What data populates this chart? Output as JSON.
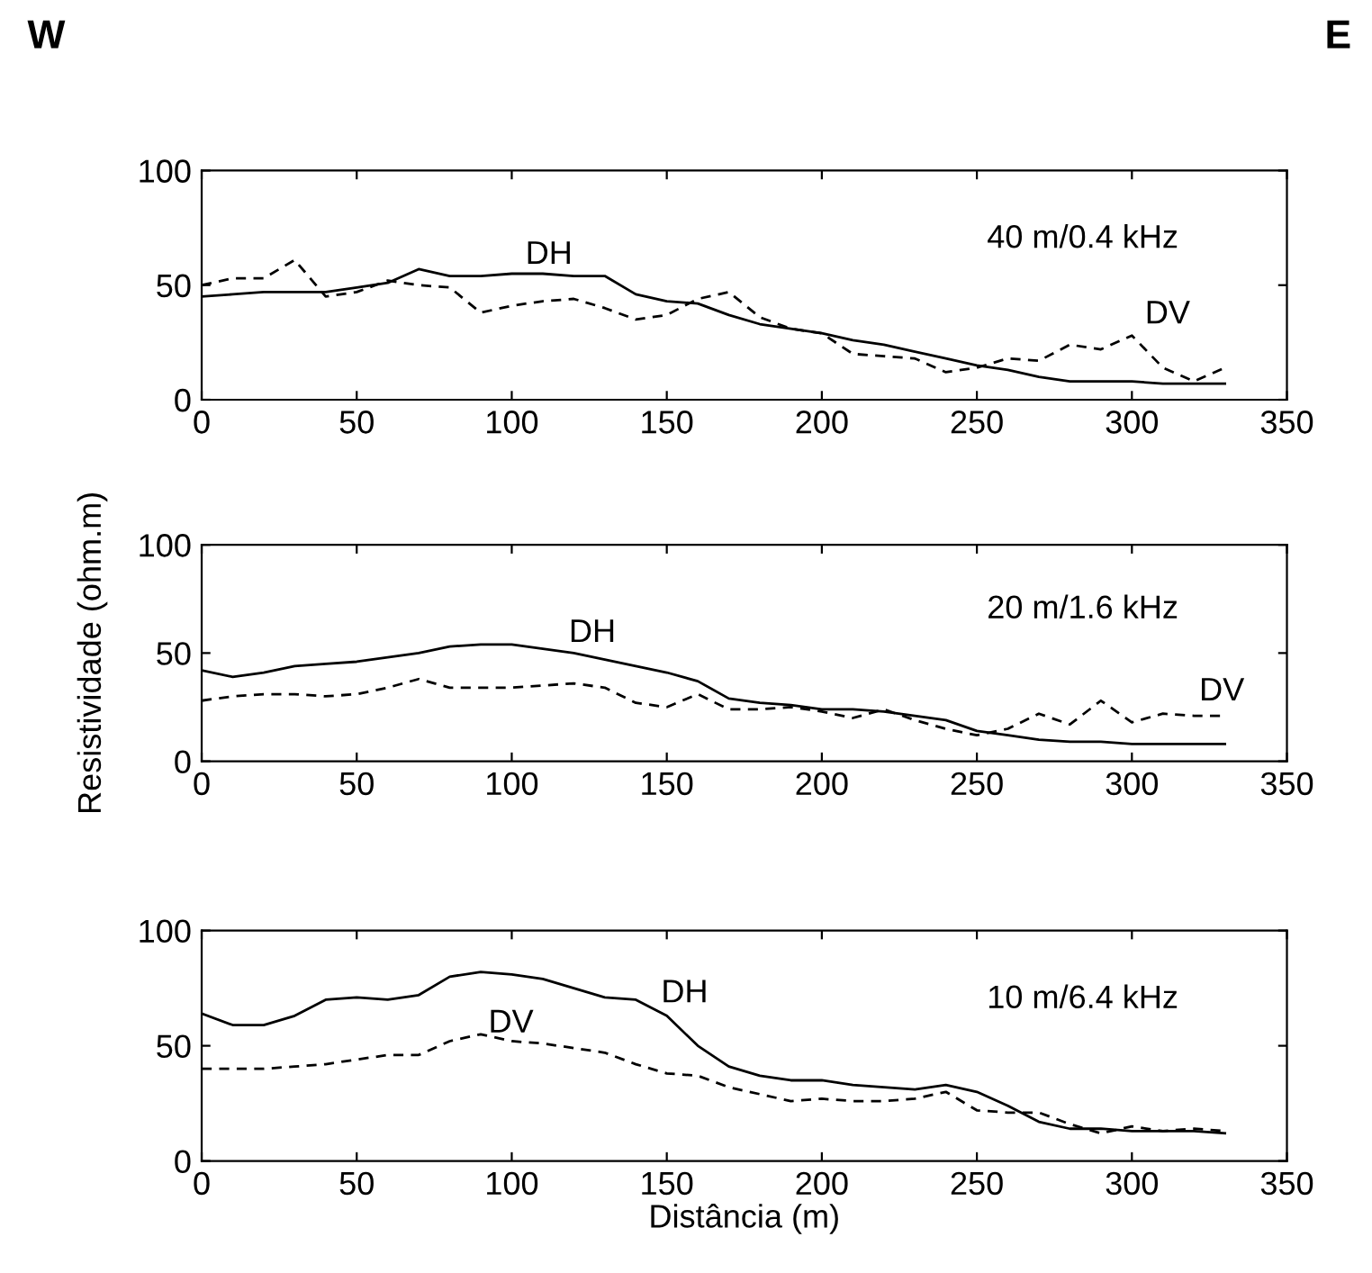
{
  "chart_data": [
    {
      "type": "line",
      "title": "40 m/0.4 kHz",
      "x": [
        0,
        10,
        20,
        30,
        40,
        50,
        60,
        70,
        80,
        90,
        100,
        110,
        120,
        130,
        140,
        150,
        160,
        170,
        180,
        190,
        200,
        210,
        220,
        230,
        240,
        250,
        260,
        270,
        280,
        290,
        300,
        310,
        320,
        330
      ],
      "series": [
        {
          "name": "DH",
          "color": "#000000",
          "line_style": "solid",
          "values": [
            45,
            46,
            47,
            47,
            47,
            49,
            51,
            57,
            54,
            54,
            55,
            55,
            54,
            54,
            46,
            43,
            42,
            37,
            33,
            31,
            29,
            26,
            24,
            21,
            18,
            15,
            13,
            10,
            8,
            8,
            8,
            7,
            7,
            7
          ]
        },
        {
          "name": "DV",
          "color": "#000000",
          "line_style": "dashed",
          "values": [
            50,
            53,
            53,
            61,
            45,
            47,
            52,
            50,
            49,
            38,
            41,
            43,
            44,
            40,
            35,
            37,
            44,
            47,
            36,
            31,
            29,
            20,
            19,
            18,
            12,
            14,
            18,
            17,
            24,
            22,
            28,
            14,
            8,
            14
          ]
        }
      ],
      "annotations": [
        "W",
        "E"
      ],
      "xlim": [
        0,
        350
      ],
      "xticks": [
        0,
        50,
        100,
        150,
        200,
        250,
        300,
        350
      ],
      "ylim": [
        0,
        100
      ],
      "yticks": [
        0,
        50,
        100
      ],
      "grid": false,
      "legend": false
    },
    {
      "type": "line",
      "title": "20 m/1.6 kHz",
      "ylabel": "Resistividade (ohm.m)",
      "x": [
        0,
        10,
        20,
        30,
        40,
        50,
        60,
        70,
        80,
        90,
        100,
        110,
        120,
        130,
        140,
        150,
        160,
        170,
        180,
        190,
        200,
        210,
        220,
        230,
        240,
        250,
        260,
        270,
        280,
        290,
        300,
        310,
        320,
        330
      ],
      "series": [
        {
          "name": "DH",
          "color": "#000000",
          "line_style": "solid",
          "values": [
            42,
            39,
            41,
            44,
            45,
            46,
            48,
            50,
            53,
            54,
            54,
            52,
            50,
            47,
            44,
            41,
            37,
            29,
            27,
            26,
            24,
            24,
            23,
            21,
            19,
            14,
            12,
            10,
            9,
            9,
            8,
            8,
            8,
            8
          ]
        },
        {
          "name": "DV",
          "color": "#000000",
          "line_style": "dashed",
          "values": [
            28,
            30,
            31,
            31,
            30,
            31,
            34,
            38,
            34,
            34,
            34,
            35,
            36,
            34,
            27,
            25,
            31,
            24,
            24,
            25,
            23,
            20,
            24,
            19,
            15,
            12,
            15,
            22,
            17,
            28,
            18,
            22,
            21,
            21
          ]
        }
      ],
      "xlim": [
        0,
        350
      ],
      "xticks": [
        0,
        50,
        100,
        150,
        200,
        250,
        300,
        350
      ],
      "ylim": [
        0,
        100
      ],
      "yticks": [
        0,
        50,
        100
      ],
      "grid": false,
      "legend": false
    },
    {
      "type": "line",
      "title": "10 m/6.4 kHz",
      "xlabel": "Distância (m)",
      "x": [
        0,
        10,
        20,
        30,
        40,
        50,
        60,
        70,
        80,
        90,
        100,
        110,
        120,
        130,
        140,
        150,
        160,
        170,
        180,
        190,
        200,
        210,
        220,
        230,
        240,
        250,
        260,
        270,
        280,
        290,
        300,
        310,
        320,
        330
      ],
      "series": [
        {
          "name": "DH",
          "color": "#000000",
          "line_style": "solid",
          "values": [
            64,
            59,
            59,
            63,
            70,
            71,
            70,
            72,
            80,
            82,
            81,
            79,
            75,
            71,
            70,
            63,
            50,
            41,
            37,
            35,
            35,
            33,
            32,
            31,
            33,
            30,
            24,
            17,
            14,
            14,
            13,
            13,
            13,
            12
          ]
        },
        {
          "name": "DV",
          "color": "#000000",
          "line_style": "dashed",
          "values": [
            40,
            40,
            40,
            41,
            42,
            44,
            46,
            46,
            52,
            55,
            52,
            51,
            49,
            47,
            42,
            38,
            37,
            32,
            29,
            26,
            27,
            26,
            26,
            27,
            30,
            22,
            21,
            21,
            16,
            12,
            15,
            13,
            14,
            13
          ]
        }
      ],
      "xlim": [
        0,
        350
      ],
      "xticks": [
        0,
        50,
        100,
        150,
        200,
        250,
        300,
        350
      ],
      "ylim": [
        0,
        100
      ],
      "yticks": [
        0,
        50,
        100
      ],
      "grid": false,
      "legend": false
    }
  ]
}
